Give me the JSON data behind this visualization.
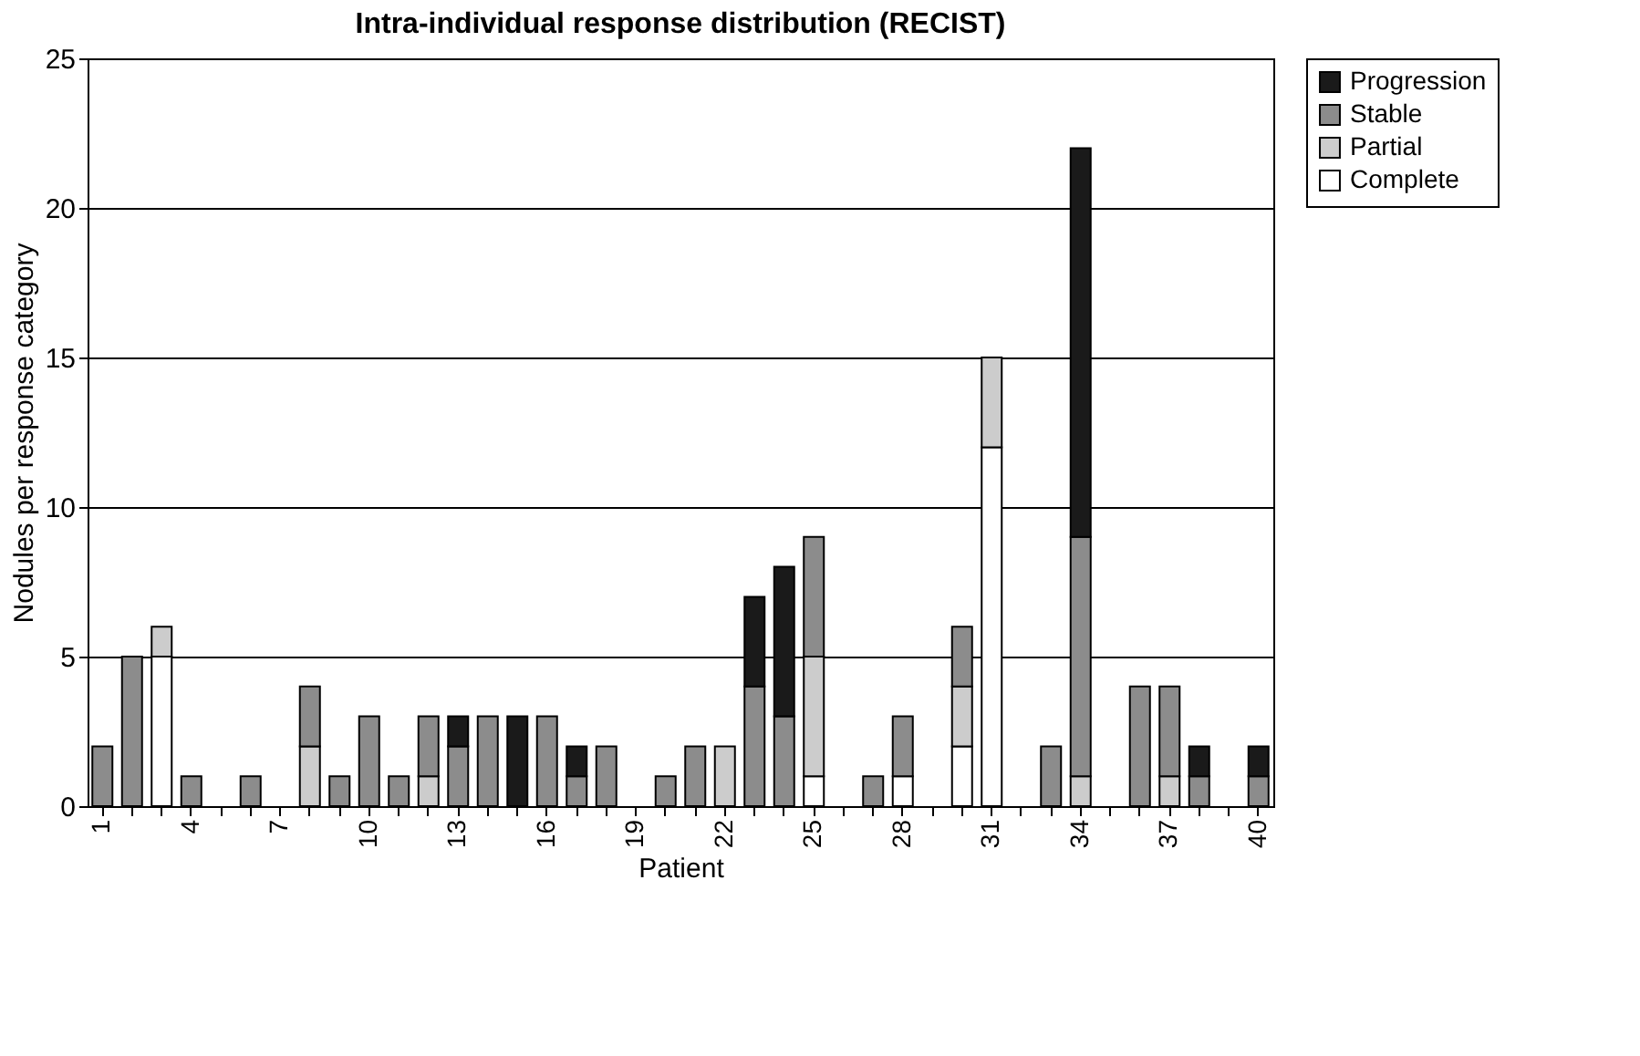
{
  "chart_data": {
    "type": "bar",
    "stacked": true,
    "title": "Intra-individual response distribution (RECIST)",
    "xlabel": "Patient",
    "ylabel": "Nodules per response category",
    "categories": [
      "1",
      null,
      null,
      "4",
      null,
      null,
      "7",
      null,
      null,
      "10",
      null,
      null,
      "13",
      null,
      null,
      "16",
      null,
      null,
      "19",
      null,
      null,
      "22",
      null,
      null,
      "25",
      null,
      null,
      "28",
      null,
      null,
      "31",
      null,
      null,
      "34",
      null,
      null,
      "37",
      null,
      null,
      "40"
    ],
    "series": [
      {
        "name": "Complete",
        "color": "#ffffff",
        "values": [
          0,
          0,
          5,
          0,
          0,
          0,
          0,
          0,
          0,
          0,
          0,
          0,
          0,
          0,
          0,
          0,
          0,
          0,
          0,
          0,
          0,
          0,
          0,
          0,
          1,
          0,
          0,
          1,
          0,
          2,
          12,
          0,
          0,
          0,
          0,
          0,
          0,
          0,
          0,
          0
        ]
      },
      {
        "name": "Partial",
        "color": "#cccccc",
        "values": [
          0,
          0,
          1,
          0,
          0,
          0,
          0,
          2,
          0,
          0,
          0,
          1,
          0,
          0,
          0,
          0,
          0,
          0,
          0,
          0,
          0,
          2,
          0,
          0,
          4,
          0,
          0,
          0,
          0,
          2,
          3,
          0,
          0,
          1,
          0,
          0,
          1,
          0,
          0,
          0
        ]
      },
      {
        "name": "Stable",
        "color": "#8c8c8c",
        "values": [
          2,
          5,
          0,
          1,
          0,
          1,
          0,
          2,
          1,
          3,
          1,
          2,
          2,
          3,
          0,
          3,
          1,
          2,
          0,
          1,
          2,
          0,
          4,
          3,
          4,
          0,
          1,
          2,
          0,
          2,
          0,
          0,
          2,
          8,
          0,
          4,
          3,
          1,
          0,
          1
        ]
      },
      {
        "name": "Progression",
        "color": "#1a1a1a",
        "values": [
          0,
          0,
          0,
          0,
          0,
          0,
          0,
          0,
          0,
          0,
          0,
          0,
          1,
          0,
          3,
          0,
          1,
          0,
          0,
          0,
          0,
          0,
          3,
          5,
          0,
          0,
          0,
          0,
          0,
          0,
          0,
          0,
          0,
          13,
          0,
          0,
          0,
          1,
          0,
          1
        ]
      }
    ],
    "ylim": [
      0,
      25
    ],
    "yticks": [
      0,
      5,
      10,
      15,
      20,
      25
    ],
    "grid": "y",
    "legend": "right"
  }
}
